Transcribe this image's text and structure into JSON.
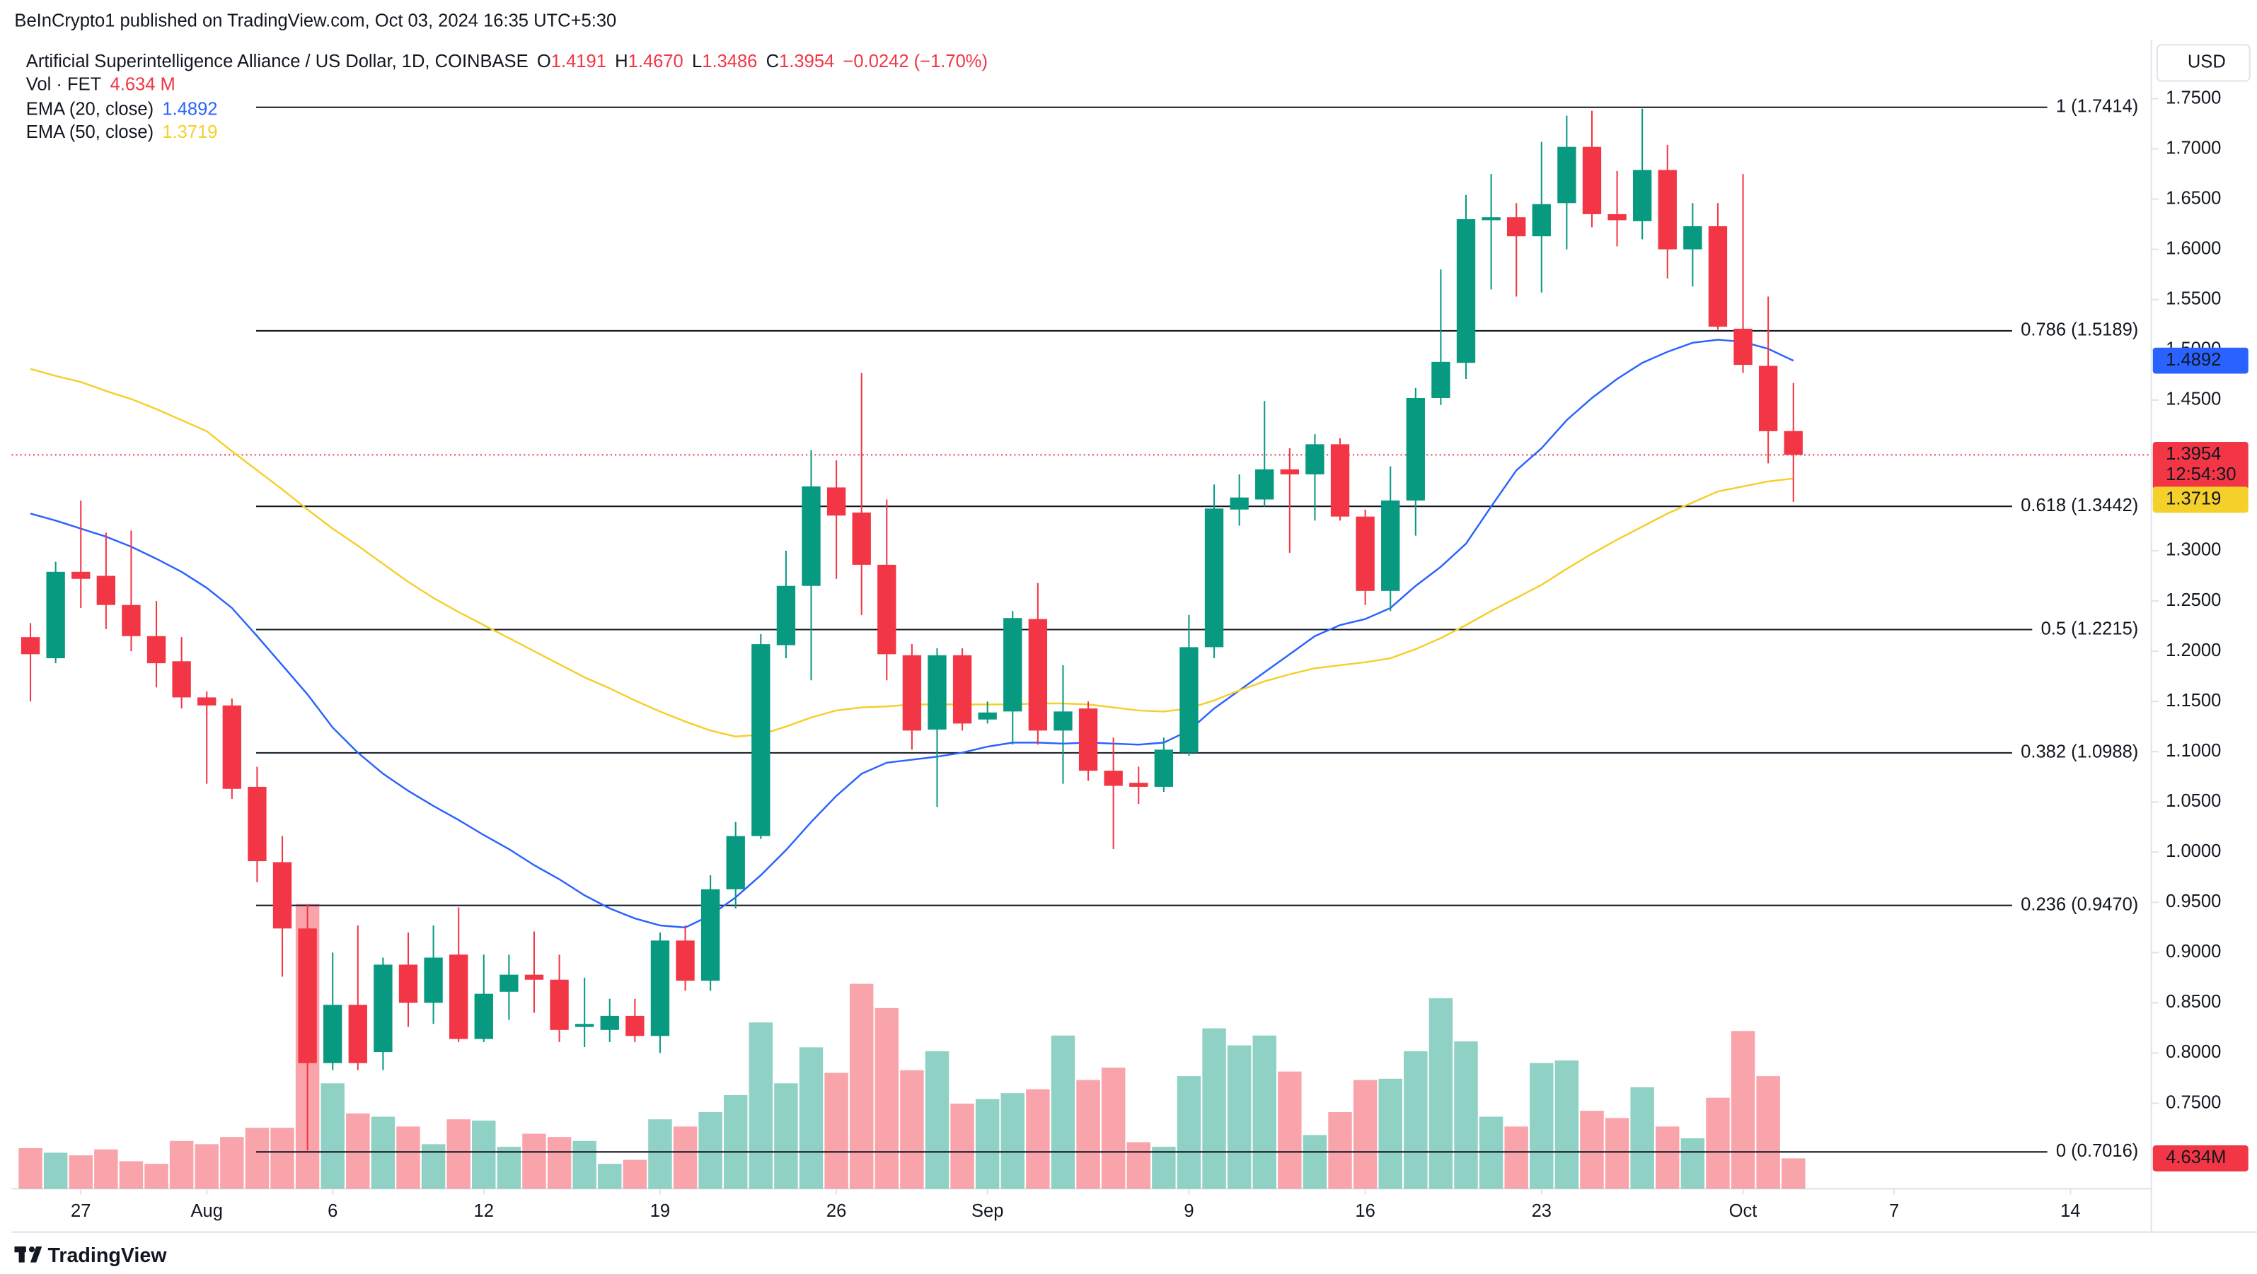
{
  "chart_data": {
    "type": "candlestick",
    "attribution": "BeInCrypto1 published on TradingView.com, Oct 03, 2024 16:35 UTC+5:30",
    "title": "Artificial Superintelligence Alliance / US Dollar, 1D, COINBASE",
    "ohlc_header": [
      {
        "label": "O",
        "value": "1.4191"
      },
      {
        "label": "H",
        "value": "1.4670"
      },
      {
        "label": "L",
        "value": "1.3486"
      },
      {
        "label": "C",
        "value": "1.3954"
      }
    ],
    "change": "−0.0242 (−1.70%)",
    "currency": "USD",
    "countdown": "12:54:30",
    "footer": "TradingView",
    "grid": false,
    "colors": {
      "up": "#089981",
      "down": "#f23645"
    },
    "x": [
      -7,
      -6,
      -5,
      -4,
      -3,
      -2,
      -1,
      0,
      1,
      2,
      3,
      4,
      5,
      6,
      7,
      8,
      9,
      10,
      11,
      12,
      13,
      14,
      15,
      16,
      17,
      18,
      19,
      20,
      21,
      22,
      23,
      24,
      25,
      26,
      27,
      28,
      29,
      30,
      31,
      32,
      33,
      34,
      35,
      36,
      37,
      38,
      39,
      40,
      41,
      42,
      43,
      44,
      45,
      46,
      47,
      48,
      49,
      50,
      51,
      52,
      53,
      54,
      55,
      56,
      57,
      58,
      59,
      60,
      61,
      62,
      63
    ],
    "xlim": [
      -7.75,
      77.1
    ],
    "xticks": [
      {
        "value": -5,
        "label": "27"
      },
      {
        "value": 0,
        "label": "Aug"
      },
      {
        "value": 5,
        "label": "6"
      },
      {
        "value": 11,
        "label": "12"
      },
      {
        "value": 18,
        "label": "19"
      },
      {
        "value": 25,
        "label": "26"
      },
      {
        "value": 31,
        "label": "Sep"
      },
      {
        "value": 39,
        "label": "9"
      },
      {
        "value": 46,
        "label": "16"
      },
      {
        "value": 53,
        "label": "23"
      },
      {
        "value": 61,
        "label": "Oct"
      },
      {
        "value": 67,
        "label": "7"
      },
      {
        "value": 74,
        "label": "14"
      }
    ],
    "ylim": [
      0.665,
      1.805
    ],
    "yticks": [
      {
        "value": 0.75,
        "label": "0.7500"
      },
      {
        "value": 0.8,
        "label": "0.8000"
      },
      {
        "value": 0.85,
        "label": "0.8500"
      },
      {
        "value": 0.9,
        "label": "0.9000"
      },
      {
        "value": 0.95,
        "label": "0.9500"
      },
      {
        "value": 1.0,
        "label": "1.0000"
      },
      {
        "value": 1.05,
        "label": "1.0500"
      },
      {
        "value": 1.1,
        "label": "1.1000"
      },
      {
        "value": 1.15,
        "label": "1.1500"
      },
      {
        "value": 1.2,
        "label": "1.2000"
      },
      {
        "value": 1.25,
        "label": "1.2500"
      },
      {
        "value": 1.3,
        "label": "1.3000"
      },
      {
        "value": 1.35,
        "label": "1.3500"
      },
      {
        "value": 1.4,
        "label": "1.4000"
      },
      {
        "value": 1.45,
        "label": "1.4500"
      },
      {
        "value": 1.5,
        "label": "1.5000"
      },
      {
        "value": 1.55,
        "label": "1.5500"
      },
      {
        "value": 1.6,
        "label": "1.6000"
      },
      {
        "value": 1.65,
        "label": "1.6500"
      },
      {
        "value": 1.7,
        "label": "1.7000"
      },
      {
        "value": 1.75,
        "label": "1.7500"
      }
    ],
    "open": [
      1.214,
      1.193,
      1.279,
      1.275,
      1.246,
      1.215,
      1.19,
      1.154,
      1.146,
      1.065,
      0.99,
      0.924,
      0.79,
      0.848,
      0.801,
      0.888,
      0.85,
      0.898,
      0.814,
      0.861,
      0.878,
      0.873,
      0.826,
      0.823,
      0.837,
      0.817,
      0.912,
      0.872,
      0.963,
      1.016,
      1.206,
      1.265,
      1.363,
      1.338,
      1.286,
      1.196,
      1.122,
      1.196,
      1.132,
      1.14,
      1.232,
      1.121,
      1.143,
      1.081,
      1.069,
      1.065,
      1.099,
      1.204,
      1.341,
      1.351,
      1.381,
      1.376,
      1.406,
      1.334,
      1.26,
      1.35,
      1.452,
      1.487,
      1.629,
      1.632,
      1.613,
      1.646,
      1.702,
      1.635,
      1.628,
      1.679,
      1.6,
      1.623,
      1.521,
      1.484,
      1.4191
    ],
    "high": [
      1.228,
      1.289,
      1.35,
      1.318,
      1.32,
      1.25,
      1.214,
      1.16,
      1.153,
      1.085,
      1.016,
      0.948,
      0.9,
      0.927,
      0.895,
      0.92,
      0.927,
      0.945,
      0.898,
      0.898,
      0.921,
      0.898,
      0.875,
      0.854,
      0.854,
      0.92,
      0.927,
      0.977,
      1.03,
      1.217,
      1.3,
      1.4,
      1.39,
      1.477,
      1.351,
      1.207,
      1.203,
      1.203,
      1.15,
      1.24,
      1.268,
      1.186,
      1.15,
      1.114,
      1.085,
      1.114,
      1.236,
      1.366,
      1.376,
      1.449,
      1.402,
      1.416,
      1.412,
      1.341,
      1.384,
      1.462,
      1.58,
      1.654,
      1.675,
      1.646,
      1.707,
      1.733,
      1.738,
      1.678,
      1.74,
      1.704,
      1.646,
      1.646,
      1.675,
      1.553,
      1.467
    ],
    "low": [
      1.15,
      1.188,
      1.243,
      1.222,
      1.2,
      1.164,
      1.143,
      1.068,
      1.053,
      0.97,
      0.876,
      0.703,
      0.783,
      0.783,
      0.783,
      0.826,
      0.829,
      0.811,
      0.811,
      0.833,
      0.84,
      0.811,
      0.806,
      0.811,
      0.811,
      0.8,
      0.862,
      0.862,
      0.944,
      1.013,
      1.193,
      1.171,
      1.272,
      1.236,
      1.171,
      1.102,
      1.045,
      1.121,
      1.128,
      1.107,
      1.107,
      1.068,
      1.071,
      1.003,
      1.048,
      1.06,
      1.096,
      1.193,
      1.325,
      1.344,
      1.298,
      1.33,
      1.33,
      1.246,
      1.24,
      1.315,
      1.445,
      1.471,
      1.56,
      1.553,
      1.557,
      1.6,
      1.622,
      1.603,
      1.61,
      1.571,
      1.563,
      1.52,
      1.477,
      1.387,
      1.3486
    ],
    "close": [
      1.197,
      1.279,
      1.272,
      1.246,
      1.215,
      1.188,
      1.154,
      1.146,
      1.063,
      0.991,
      0.924,
      0.79,
      0.848,
      0.79,
      0.888,
      0.85,
      0.895,
      0.814,
      0.859,
      0.878,
      0.873,
      0.823,
      0.829,
      0.837,
      0.817,
      0.912,
      0.872,
      0.963,
      1.016,
      1.207,
      1.265,
      1.364,
      1.335,
      1.286,
      1.197,
      1.121,
      1.196,
      1.128,
      1.139,
      1.233,
      1.121,
      1.14,
      1.081,
      1.066,
      1.065,
      1.102,
      1.204,
      1.342,
      1.353,
      1.381,
      1.376,
      1.406,
      1.334,
      1.26,
      1.35,
      1.452,
      1.488,
      1.63,
      1.632,
      1.613,
      1.645,
      1.702,
      1.635,
      1.629,
      1.679,
      1.6,
      1.623,
      1.523,
      1.485,
      1.419,
      1.3954
    ],
    "volume": {
      "name": "Vol · FET",
      "value_label": "4.634 M",
      "tag_label": "4.634M",
      "ylim": [
        0,
        175
      ],
      "values": [
        6.2,
        5.5,
        5.1,
        6.0,
        4.2,
        3.8,
        7.3,
        6.8,
        7.9,
        9.3,
        9.3,
        43.5,
        16.1,
        11.5,
        11.0,
        9.5,
        6.8,
        10.6,
        10.4,
        6.4,
        8.4,
        7.9,
        7.3,
        3.8,
        4.4,
        10.6,
        9.5,
        11.7,
        14.3,
        25.4,
        16.1,
        21.6,
        17.7,
        31.3,
        27.6,
        18.1,
        21.0,
        13.0,
        13.7,
        14.6,
        15.2,
        23.4,
        16.6,
        18.5,
        7.1,
        6.4,
        17.2,
        24.5,
        21.9,
        23.4,
        17.9,
        8.2,
        11.7,
        16.6,
        16.8,
        21.0,
        29.1,
        22.5,
        11.0,
        9.5,
        19.2,
        19.6,
        11.9,
        10.8,
        15.5,
        9.5,
        7.7,
        13.9,
        24.1,
        17.2,
        4.634
      ]
    },
    "series": [
      {
        "name": "EMA (20, close)",
        "color": "#2962ff",
        "values": [
          1.337,
          1.33,
          1.322,
          1.314,
          1.304,
          1.292,
          1.279,
          1.263,
          1.243,
          1.215,
          1.186,
          1.157,
          1.124,
          1.099,
          1.078,
          1.061,
          1.046,
          1.032,
          1.017,
          1.003,
          0.987,
          0.973,
          0.957,
          0.944,
          0.934,
          0.927,
          0.925,
          0.937,
          0.955,
          0.977,
          1.002,
          1.03,
          1.056,
          1.078,
          1.089,
          1.092,
          1.095,
          1.099,
          1.105,
          1.109,
          1.109,
          1.108,
          1.109,
          1.108,
          1.107,
          1.109,
          1.121,
          1.143,
          1.161,
          1.179,
          1.197,
          1.215,
          1.226,
          1.232,
          1.243,
          1.265,
          1.284,
          1.307,
          1.344,
          1.38,
          1.402,
          1.43,
          1.452,
          1.471,
          1.487,
          1.498,
          1.507,
          1.51,
          1.508,
          1.501,
          1.4892
        ]
      },
      {
        "name": "EMA (50, close)",
        "color": "#f5cf2a",
        "values": [
          1.481,
          1.474,
          1.468,
          1.459,
          1.451,
          1.441,
          1.43,
          1.419,
          1.399,
          1.38,
          1.361,
          1.341,
          1.322,
          1.305,
          1.287,
          1.269,
          1.253,
          1.239,
          1.226,
          1.213,
          1.2,
          1.187,
          1.174,
          1.163,
          1.151,
          1.14,
          1.13,
          1.121,
          1.115,
          1.117,
          1.125,
          1.134,
          1.141,
          1.144,
          1.145,
          1.147,
          1.147,
          1.147,
          1.147,
          1.147,
          1.148,
          1.148,
          1.147,
          1.144,
          1.141,
          1.14,
          1.143,
          1.151,
          1.161,
          1.17,
          1.177,
          1.183,
          1.186,
          1.189,
          1.193,
          1.202,
          1.213,
          1.226,
          1.24,
          1.253,
          1.266,
          1.282,
          1.297,
          1.311,
          1.324,
          1.337,
          1.348,
          1.359,
          1.364,
          1.369,
          1.3719
        ]
      }
    ],
    "fib_levels": [
      {
        "value": 1.7414,
        "label": "1 (1.7414)"
      },
      {
        "value": 1.5189,
        "label": "0.786 (1.5189)"
      },
      {
        "value": 1.3442,
        "label": "0.618 (1.3442)"
      },
      {
        "value": 1.2215,
        "label": "0.5 (1.2215)"
      },
      {
        "value": 1.0988,
        "label": "0.382 (1.0988)"
      },
      {
        "value": 0.947,
        "label": "0.236 (0.9470)"
      },
      {
        "value": 0.7016,
        "label": "0 (0.7016)"
      }
    ]
  }
}
